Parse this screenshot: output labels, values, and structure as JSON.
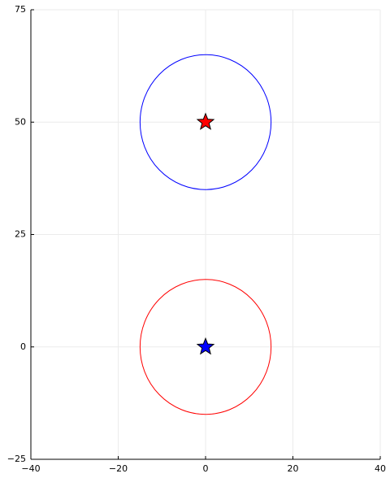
{
  "chart_data": {
    "type": "shapes",
    "xlim": [
      -40,
      40
    ],
    "ylim": [
      -25,
      75
    ],
    "xticks": [
      {
        "value": -40,
        "label": "−40"
      },
      {
        "value": -20,
        "label": "−20"
      },
      0,
      20,
      40
    ],
    "yticks": [
      {
        "value": -25,
        "label": "−25"
      },
      0,
      25,
      50,
      75
    ],
    "grid": true,
    "series": [
      {
        "shape": "circle",
        "color": "#0000ff",
        "x": 0,
        "y": 50,
        "r": 15
      },
      {
        "shape": "circle",
        "color": "#ff0000",
        "x": 0,
        "y": 0,
        "r": 15
      },
      {
        "shape": "star",
        "color": "#ff0000",
        "x": 0,
        "y": 50
      },
      {
        "shape": "star",
        "color": "#0000ff",
        "x": 0,
        "y": 0
      }
    ]
  }
}
